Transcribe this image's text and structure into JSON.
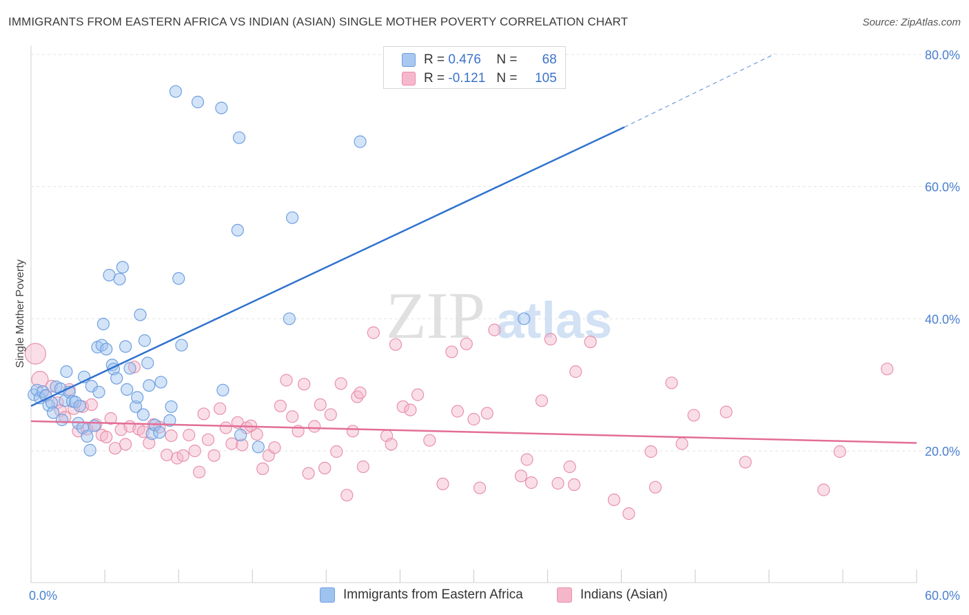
{
  "title": "IMMIGRANTS FROM EASTERN AFRICA VS INDIAN (ASIAN) SINGLE MOTHER POVERTY CORRELATION CHART",
  "source": "Source: ZipAtlas.com",
  "watermark": {
    "zip": "ZIP",
    "atlas": "atlas"
  },
  "stats": [
    {
      "r_label": "R =",
      "r_value": "0.476",
      "n_label": "N =",
      "n_value": "68",
      "color": "#a9c8f0",
      "border": "#6d9be0"
    },
    {
      "r_label": "R =",
      "r_value": "-0.121",
      "n_label": "N =",
      "n_value": "105",
      "color": "#f6b8cc",
      "border": "#e98aa8"
    }
  ],
  "colors": {
    "blue_fill": "#9ec3ef",
    "blue_stroke": "#6f9fe0",
    "blue_line": "#2f72cf",
    "pink_fill": "#f5b6c9",
    "pink_stroke": "#e890ab",
    "pink_line": "#e36d96",
    "tick": "#4a7fd1",
    "grid": "#e3e3e3"
  },
  "chart_data": {
    "type": "scatter",
    "ylabel": "Single Mother Poverty",
    "xlim": [
      0,
      60
    ],
    "ylim": [
      0,
      85
    ],
    "x_tick_labels": [
      {
        "value": 0,
        "label": "0.0%"
      },
      {
        "value": 60,
        "label": "60.0%"
      }
    ],
    "y_tick_labels": [
      {
        "value": 20,
        "label": "20.0%"
      },
      {
        "value": 40,
        "label": "40.0%"
      },
      {
        "value": 60,
        "label": "60.0%"
      },
      {
        "value": 80,
        "label": "80.0%"
      }
    ],
    "grid": true,
    "legend_position": "bottom",
    "series": [
      {
        "name": "Immigrants from Eastern Africa",
        "trend": {
          "x": [
            0,
            40.2
          ],
          "y": [
            26.8,
            69.0
          ],
          "dash_x": [
            40.2,
            50.4
          ],
          "dash_y": [
            69.0,
            80.1
          ]
        },
        "points": [
          [
            0.2,
            28.5
          ],
          [
            0.4,
            29.2
          ],
          [
            0.6,
            28.0
          ],
          [
            0.8,
            29.0
          ],
          [
            1.0,
            28.4
          ],
          [
            1.2,
            26.9
          ],
          [
            1.4,
            27.3
          ],
          [
            1.5,
            25.8
          ],
          [
            1.7,
            29.7
          ],
          [
            2.0,
            29.4
          ],
          [
            2.1,
            24.7
          ],
          [
            2.3,
            27.6
          ],
          [
            2.4,
            32.0
          ],
          [
            2.6,
            28.9
          ],
          [
            2.8,
            27.5
          ],
          [
            3.0,
            27.4
          ],
          [
            3.2,
            24.2
          ],
          [
            3.3,
            26.8
          ],
          [
            3.5,
            23.5
          ],
          [
            3.6,
            31.2
          ],
          [
            3.8,
            22.2
          ],
          [
            4.0,
            20.1
          ],
          [
            4.1,
            29.8
          ],
          [
            4.3,
            23.8
          ],
          [
            4.5,
            35.7
          ],
          [
            4.6,
            28.9
          ],
          [
            4.8,
            36.0
          ],
          [
            4.9,
            39.2
          ],
          [
            5.1,
            35.4
          ],
          [
            5.3,
            46.6
          ],
          [
            5.5,
            33.0
          ],
          [
            5.6,
            32.4
          ],
          [
            5.8,
            31.0
          ],
          [
            6.0,
            46.0
          ],
          [
            6.2,
            47.8
          ],
          [
            6.4,
            35.8
          ],
          [
            6.5,
            29.3
          ],
          [
            6.7,
            32.5
          ],
          [
            7.1,
            26.7
          ],
          [
            7.2,
            28.1
          ],
          [
            7.4,
            40.6
          ],
          [
            7.6,
            25.5
          ],
          [
            7.7,
            36.7
          ],
          [
            7.9,
            33.3
          ],
          [
            8.0,
            29.9
          ],
          [
            8.2,
            22.6
          ],
          [
            8.4,
            23.9
          ],
          [
            8.7,
            22.8
          ],
          [
            8.8,
            30.4
          ],
          [
            9.4,
            24.6
          ],
          [
            9.5,
            26.7
          ],
          [
            9.8,
            74.4
          ],
          [
            10.0,
            46.1
          ],
          [
            10.2,
            36.0
          ],
          [
            11.3,
            72.8
          ],
          [
            12.9,
            71.9
          ],
          [
            13.0,
            29.2
          ],
          [
            14.0,
            53.4
          ],
          [
            14.1,
            67.4
          ],
          [
            14.2,
            22.4
          ],
          [
            15.4,
            20.6
          ],
          [
            17.5,
            40.0
          ],
          [
            17.7,
            55.3
          ],
          [
            22.3,
            66.8
          ],
          [
            33.4,
            40.0
          ]
        ]
      },
      {
        "name": "Indians (Asian)",
        "trend": {
          "x": [
            0,
            60
          ],
          "y": [
            24.5,
            21.2
          ]
        },
        "points": [
          [
            0.3,
            34.7
          ],
          [
            0.6,
            30.8
          ],
          [
            1.0,
            28.3
          ],
          [
            1.4,
            29.8
          ],
          [
            1.8,
            27.3
          ],
          [
            2.0,
            26.1
          ],
          [
            2.3,
            25.1
          ],
          [
            2.6,
            29.3
          ],
          [
            2.9,
            26.4
          ],
          [
            3.2,
            23.0
          ],
          [
            3.5,
            26.7
          ],
          [
            3.8,
            23.3
          ],
          [
            4.1,
            27.0
          ],
          [
            4.4,
            24.0
          ],
          [
            4.8,
            22.4
          ],
          [
            5.1,
            22.1
          ],
          [
            5.4,
            24.9
          ],
          [
            5.7,
            20.4
          ],
          [
            6.1,
            23.2
          ],
          [
            6.4,
            21.0
          ],
          [
            6.7,
            23.7
          ],
          [
            7.0,
            32.7
          ],
          [
            7.3,
            23.3
          ],
          [
            7.6,
            22.9
          ],
          [
            8.0,
            21.2
          ],
          [
            8.3,
            24.0
          ],
          [
            8.7,
            23.6
          ],
          [
            9.2,
            19.4
          ],
          [
            9.5,
            22.3
          ],
          [
            9.9,
            18.9
          ],
          [
            10.3,
            19.3
          ],
          [
            10.7,
            22.4
          ],
          [
            11.1,
            20.0
          ],
          [
            11.4,
            16.8
          ],
          [
            11.7,
            25.6
          ],
          [
            12.0,
            21.7
          ],
          [
            12.4,
            19.3
          ],
          [
            12.8,
            26.4
          ],
          [
            13.2,
            23.5
          ],
          [
            13.6,
            21.1
          ],
          [
            14.0,
            24.3
          ],
          [
            14.3,
            20.9
          ],
          [
            14.6,
            23.5
          ],
          [
            14.9,
            23.8
          ],
          [
            15.3,
            22.5
          ],
          [
            15.7,
            17.3
          ],
          [
            16.1,
            19.3
          ],
          [
            16.5,
            20.5
          ],
          [
            16.9,
            26.8
          ],
          [
            17.3,
            30.7
          ],
          [
            17.7,
            25.2
          ],
          [
            18.1,
            23.0
          ],
          [
            18.5,
            30.1
          ],
          [
            18.8,
            16.6
          ],
          [
            19.2,
            23.7
          ],
          [
            19.6,
            27.0
          ],
          [
            19.9,
            17.4
          ],
          [
            20.3,
            25.5
          ],
          [
            20.7,
            19.9
          ],
          [
            21.0,
            30.2
          ],
          [
            21.4,
            13.3
          ],
          [
            21.8,
            23.0
          ],
          [
            22.1,
            28.2
          ],
          [
            22.3,
            28.8
          ],
          [
            22.5,
            17.6
          ],
          [
            23.2,
            37.9
          ],
          [
            24.1,
            22.3
          ],
          [
            24.4,
            21.0
          ],
          [
            24.7,
            36.1
          ],
          [
            25.2,
            26.7
          ],
          [
            25.7,
            26.2
          ],
          [
            26.2,
            28.5
          ],
          [
            27.0,
            21.6
          ],
          [
            27.9,
            15.0
          ],
          [
            28.5,
            35.0
          ],
          [
            28.9,
            26.0
          ],
          [
            29.5,
            36.2
          ],
          [
            30.0,
            24.8
          ],
          [
            30.4,
            14.4
          ],
          [
            30.9,
            25.7
          ],
          [
            31.4,
            38.3
          ],
          [
            33.2,
            16.2
          ],
          [
            33.6,
            18.7
          ],
          [
            33.9,
            15.2
          ],
          [
            34.6,
            27.6
          ],
          [
            35.2,
            36.9
          ],
          [
            35.7,
            15.1
          ],
          [
            36.5,
            17.6
          ],
          [
            36.8,
            14.9
          ],
          [
            36.9,
            32.0
          ],
          [
            37.9,
            36.5
          ],
          [
            39.5,
            12.6
          ],
          [
            40.5,
            10.5
          ],
          [
            42.0,
            19.9
          ],
          [
            42.3,
            14.5
          ],
          [
            43.4,
            30.3
          ],
          [
            44.1,
            21.1
          ],
          [
            44.9,
            25.4
          ],
          [
            47.1,
            25.9
          ],
          [
            48.4,
            18.3
          ],
          [
            53.7,
            14.1
          ],
          [
            54.8,
            19.9
          ],
          [
            58.0,
            32.4
          ]
        ]
      }
    ]
  }
}
